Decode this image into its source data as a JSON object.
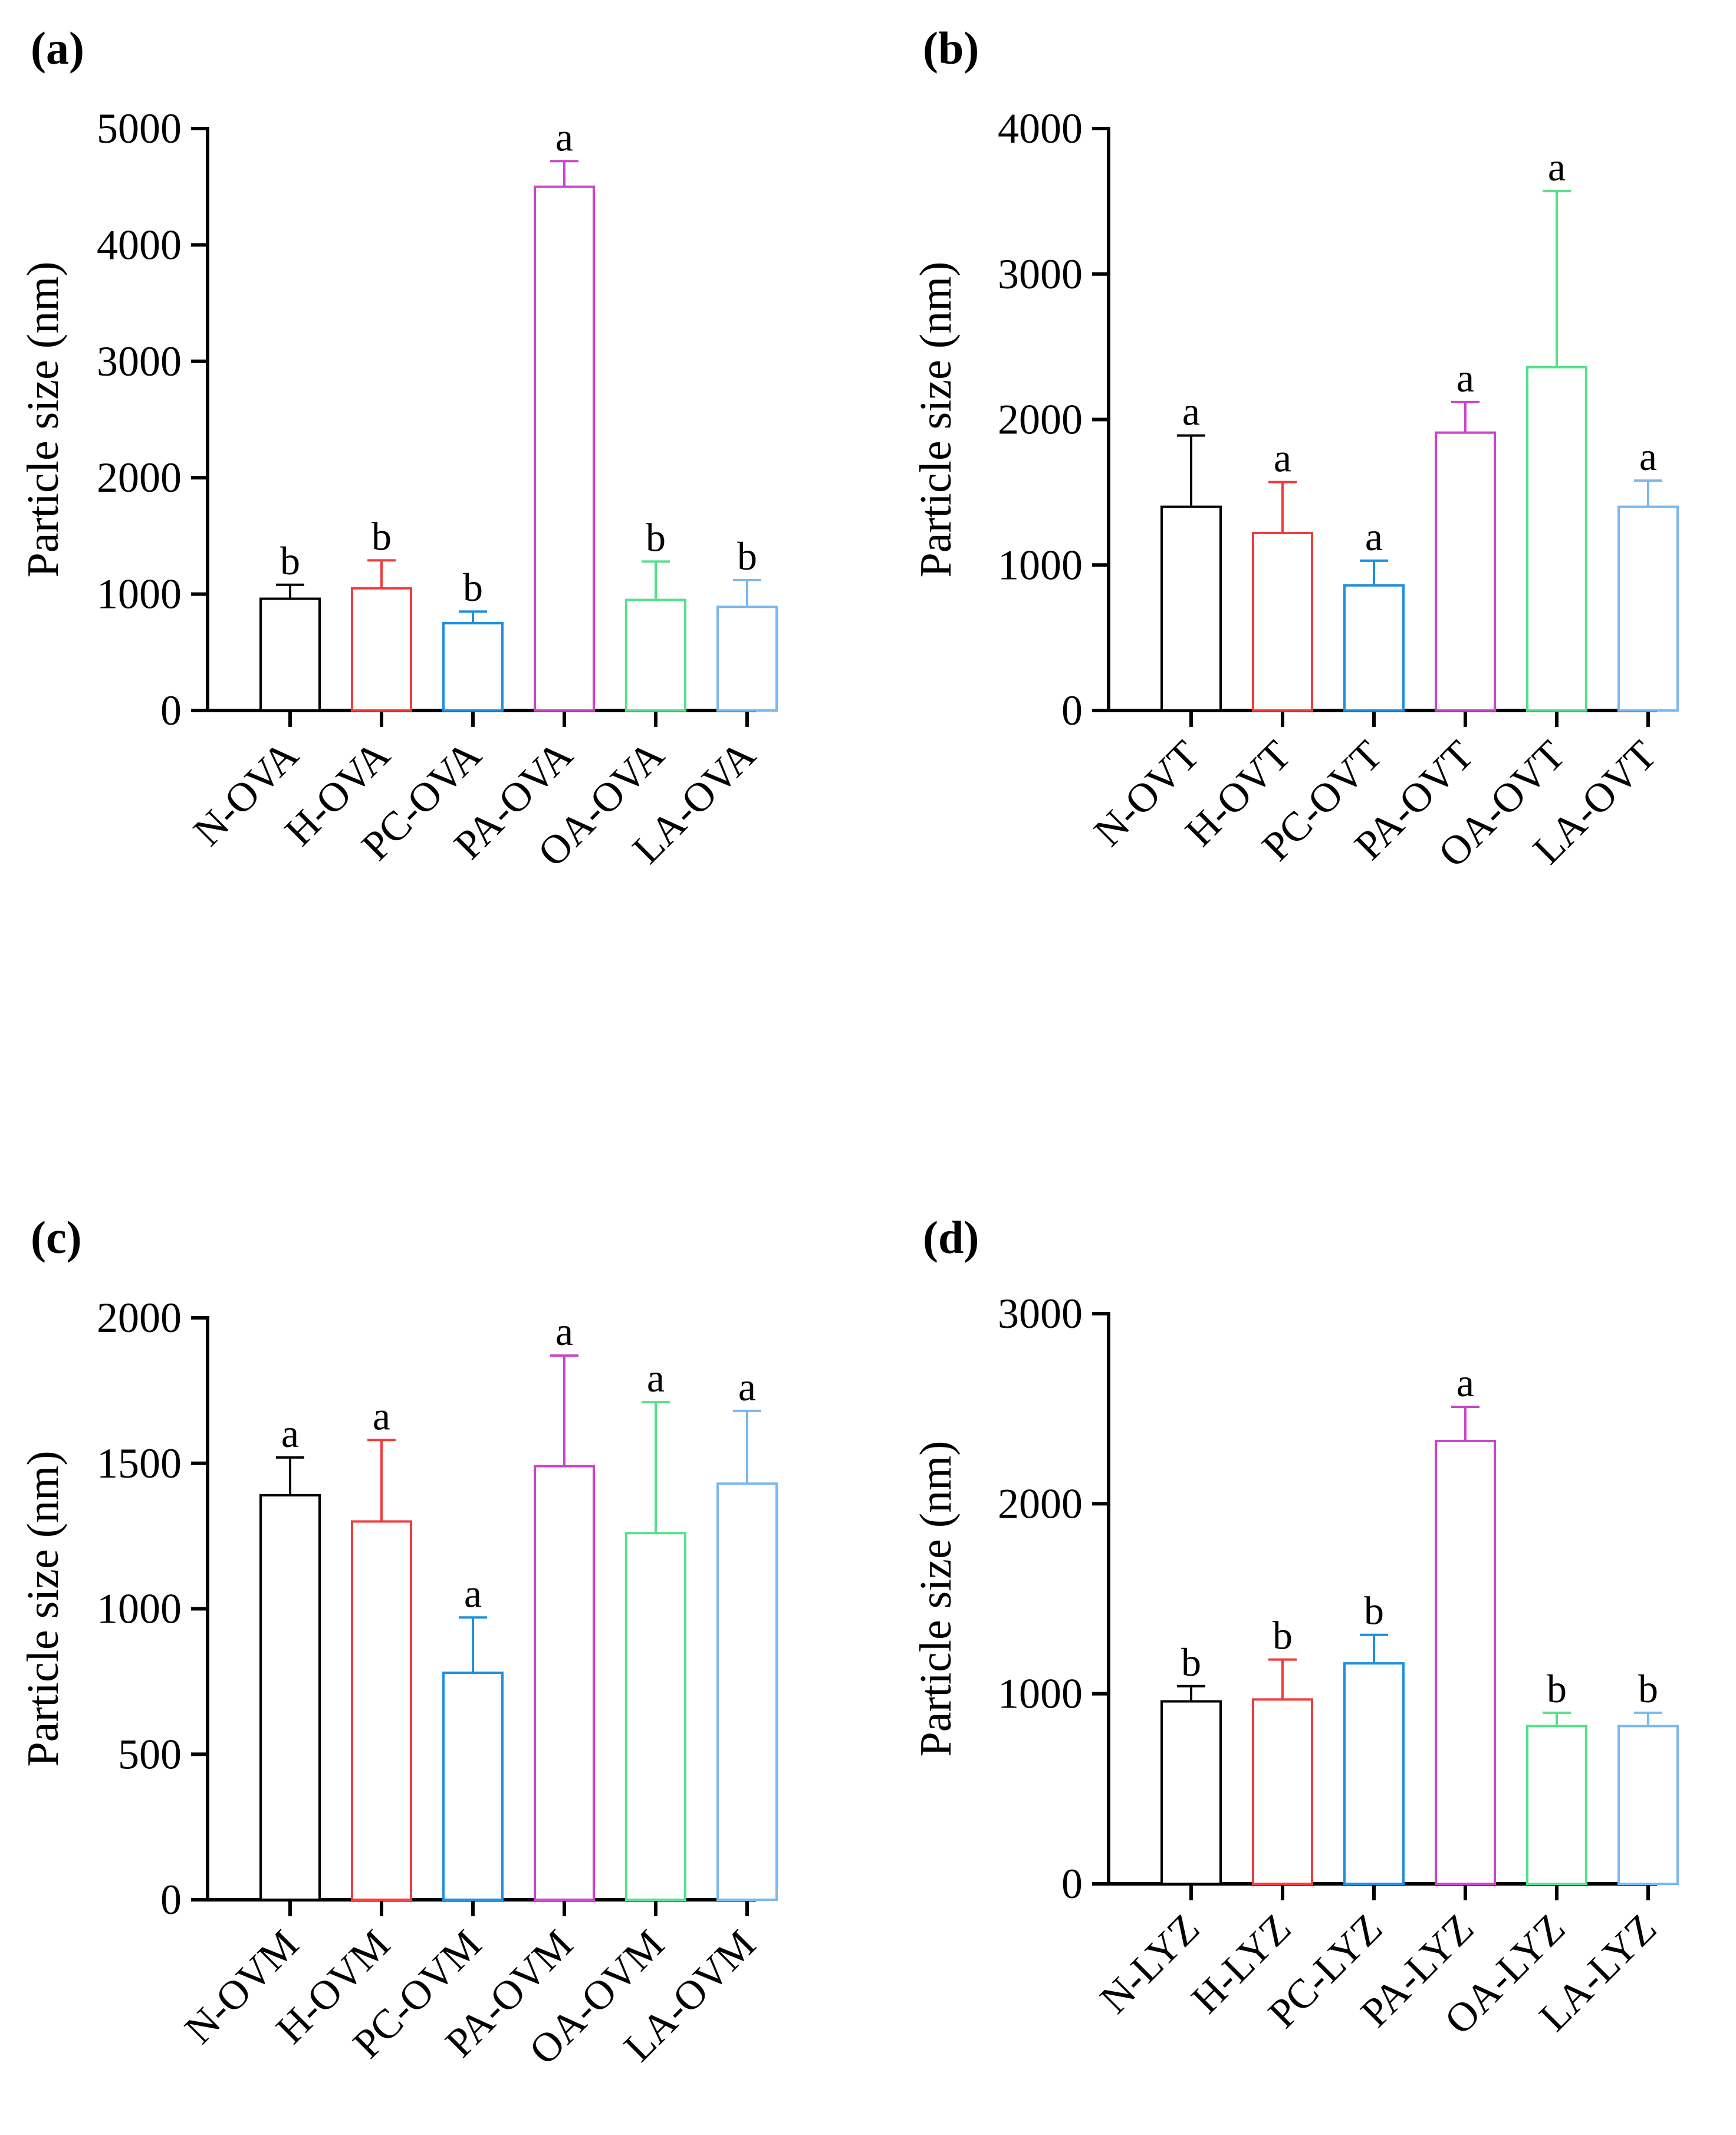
{
  "chart_data": [
    {
      "panel": "(a)",
      "type": "bar",
      "ylabel": "Particle size (nm)",
      "ylim": [
        0,
        5000
      ],
      "yticks": [
        0,
        1000,
        2000,
        3000,
        4000,
        5000
      ],
      "categories": [
        "N-OVA",
        "H-OVA",
        "PC-OVA",
        "PA-OVA",
        "OA-OVA",
        "LA-OVA"
      ],
      "values": [
        960,
        1050,
        750,
        4500,
        950,
        890
      ],
      "errors": [
        120,
        240,
        100,
        220,
        330,
        230
      ],
      "significance": [
        "b",
        "b",
        "b",
        "a",
        "b",
        "b"
      ],
      "colors": [
        "#000000",
        "#f03c3c",
        "#1e8fe0",
        "#cc44cc",
        "#55e08a",
        "#7ab8ee"
      ]
    },
    {
      "panel": "(b)",
      "type": "bar",
      "ylabel": "Particle size (nm)",
      "ylim": [
        0,
        4000
      ],
      "yticks": [
        0,
        1000,
        2000,
        3000,
        4000
      ],
      "categories": [
        "N-OVT",
        "H-OVT",
        "PC-OVT",
        "PA-OVT",
        "OA-OVT",
        "LA-OVT"
      ],
      "values": [
        1400,
        1220,
        860,
        1910,
        2360,
        1400
      ],
      "errors": [
        490,
        350,
        170,
        210,
        1210,
        180
      ],
      "significance": [
        "a",
        "a",
        "a",
        "a",
        "a",
        "a"
      ],
      "colors": [
        "#000000",
        "#f03c3c",
        "#1e8fe0",
        "#cc44cc",
        "#55e08a",
        "#7ab8ee"
      ]
    },
    {
      "panel": "(c)",
      "type": "bar",
      "ylabel": "Particle size (nm)",
      "ylim": [
        0,
        2000
      ],
      "yticks": [
        0,
        500,
        1000,
        1500,
        2000
      ],
      "categories": [
        "N-OVM",
        "H-OVM",
        "PC-OVM",
        "PA-OVM",
        "OA-OVM",
        "LA-OVM"
      ],
      "values": [
        1390,
        1300,
        780,
        1490,
        1260,
        1430
      ],
      "errors": [
        130,
        280,
        190,
        380,
        450,
        250
      ],
      "significance": [
        "a",
        "a",
        "a",
        "a",
        "a",
        "a"
      ],
      "colors": [
        "#000000",
        "#f03c3c",
        "#1e8fe0",
        "#cc44cc",
        "#55e08a",
        "#7ab8ee"
      ]
    },
    {
      "panel": "(d)",
      "type": "bar",
      "ylabel": "Particle size (nm)",
      "ylim": [
        0,
        3000
      ],
      "yticks": [
        0,
        1000,
        2000,
        3000
      ],
      "categories": [
        "N-LYZ",
        "H-LYZ",
        "PC-LYZ",
        "PA-LYZ",
        "OA-LYZ",
        "LA-LYZ"
      ],
      "values": [
        960,
        970,
        1160,
        2330,
        830,
        830
      ],
      "errors": [
        80,
        210,
        150,
        180,
        70,
        70
      ],
      "significance": [
        "b",
        "b",
        "b",
        "a",
        "b",
        "b"
      ],
      "colors": [
        "#000000",
        "#f03c3c",
        "#1e8fe0",
        "#cc44cc",
        "#55e08a",
        "#7ab8ee"
      ]
    }
  ]
}
